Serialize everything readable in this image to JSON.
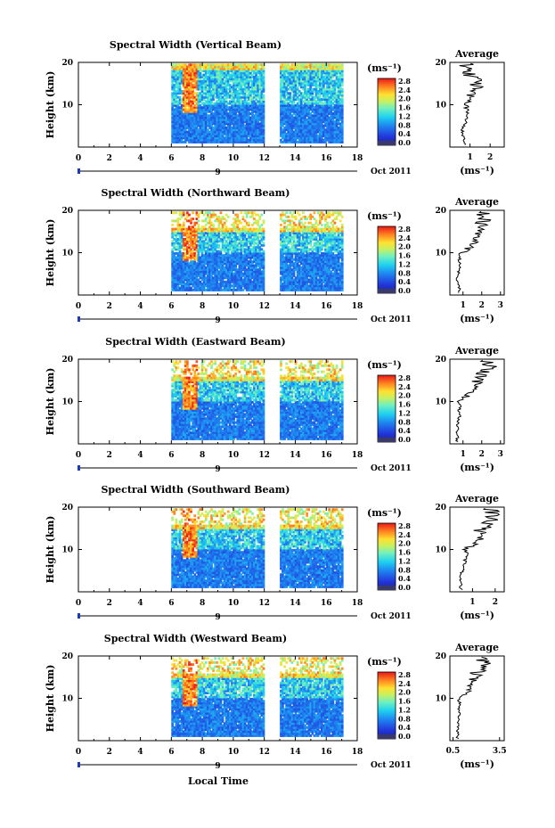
{
  "figure": {
    "xlabel_bottom": "Local Time",
    "x_ticks": [
      "0",
      "2",
      "4",
      "6",
      "8",
      "10",
      "12",
      "14",
      "16",
      "18"
    ],
    "date_label": "Oct 2011",
    "date_day": "9",
    "ylabel": "Height (km)",
    "y_ticks": [
      "20",
      "10"
    ],
    "units": "(ms⁻¹)",
    "colorbar_ticks": [
      "2.8",
      "2.4",
      "2.0",
      "1.6",
      "1.2",
      "0.8",
      "0.4",
      "0.0"
    ],
    "avg_title": "Average",
    "avg_xlabel": "(ms⁻¹)"
  },
  "chart_data": [
    {
      "type": "heatmap",
      "title": "Spectral Width (Vertical Beam)",
      "xlim": [
        0,
        18
      ],
      "ylim": [
        0,
        20
      ],
      "data_windows": [
        [
          6,
          12
        ],
        [
          13,
          17
        ]
      ],
      "colorbar_range": [
        0,
        3.0
      ],
      "average_profile": {
        "title": "Average",
        "xlabel": "(ms⁻¹)",
        "x_ticks": [
          "1",
          "2"
        ],
        "xlim": [
          0,
          2.7
        ],
        "height": [
          2,
          4,
          6,
          8,
          10,
          12,
          14,
          16,
          18,
          20
        ],
        "value": [
          0.7,
          0.6,
          0.8,
          0.9,
          0.8,
          1.0,
          1.4,
          1.3,
          0.9,
          0.7
        ]
      }
    },
    {
      "type": "heatmap",
      "title": "Spectral Width (Northward Beam)",
      "xlim": [
        0,
        18
      ],
      "ylim": [
        0,
        20
      ],
      "data_windows": [
        [
          6,
          12
        ],
        [
          13,
          17
        ]
      ],
      "colorbar_range": [
        0,
        3.0
      ],
      "average_profile": {
        "title": "Average",
        "xlabel": "(ms⁻¹)",
        "x_ticks": [
          "1",
          "2",
          "3"
        ],
        "xlim": [
          0.3,
          3.2
        ],
        "height": [
          2,
          4,
          6,
          8,
          10,
          12,
          14,
          16,
          18,
          20
        ],
        "value": [
          0.8,
          0.7,
          0.8,
          0.8,
          0.9,
          1.6,
          1.7,
          1.8,
          2.2,
          1.9
        ]
      }
    },
    {
      "type": "heatmap",
      "title": "Spectral Width (Eastward Beam)",
      "xlim": [
        0,
        18
      ],
      "ylim": [
        0,
        20
      ],
      "data_windows": [
        [
          6,
          12
        ],
        [
          13,
          17
        ]
      ],
      "colorbar_range": [
        0,
        3.0
      ],
      "average_profile": {
        "title": "Average",
        "xlabel": "(ms⁻¹)",
        "x_ticks": [
          "1",
          "2",
          "3"
        ],
        "xlim": [
          0.3,
          3.2
        ],
        "height": [
          2,
          4,
          6,
          8,
          10,
          12,
          14,
          16,
          18,
          20
        ],
        "value": [
          0.7,
          0.7,
          0.8,
          0.8,
          0.9,
          1.4,
          1.7,
          1.9,
          2.6,
          2.0
        ]
      }
    },
    {
      "type": "heatmap",
      "title": "Spectral Width (Southward Beam)",
      "xlim": [
        0,
        18
      ],
      "ylim": [
        0,
        20
      ],
      "data_windows": [
        [
          6,
          12
        ],
        [
          13,
          17
        ]
      ],
      "colorbar_range": [
        0,
        3.0
      ],
      "average_profile": {
        "title": "Average",
        "xlabel": "(ms⁻¹)",
        "x_ticks": [
          "1",
          "2"
        ],
        "xlim": [
          0,
          2.4
        ],
        "height": [
          2,
          4,
          6,
          8,
          10,
          12,
          14,
          16,
          18,
          20
        ],
        "value": [
          0.5,
          0.5,
          0.6,
          0.7,
          0.8,
          1.2,
          1.5,
          1.5,
          1.9,
          1.6
        ]
      }
    },
    {
      "type": "heatmap",
      "title": "Spectral Width (Westward Beam)",
      "xlim": [
        0,
        18
      ],
      "ylim": [
        0,
        20
      ],
      "data_windows": [
        [
          6,
          12
        ],
        [
          13,
          17
        ]
      ],
      "colorbar_range": [
        0,
        3.0
      ],
      "average_profile": {
        "title": "Average",
        "xlabel": "(ms⁻¹)",
        "x_ticks": [
          "0.5",
          "3.5"
        ],
        "xlim": [
          0.3,
          3.8
        ],
        "height": [
          2,
          4,
          6,
          8,
          10,
          12,
          14,
          16,
          18,
          20
        ],
        "value": [
          0.8,
          0.8,
          0.9,
          0.9,
          1.0,
          1.5,
          1.8,
          2.0,
          2.6,
          2.2
        ]
      }
    }
  ]
}
